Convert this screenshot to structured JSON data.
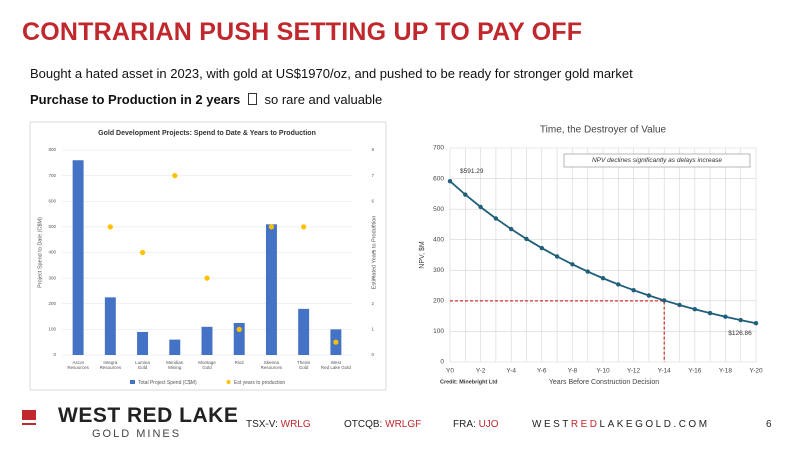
{
  "header": {
    "title": "CONTRARIAN PUSH SETTING UP TO PAY OFF",
    "line1": "Bought a hated asset in 2023, with gold at US$1970/oz, and pushed to be ready for stronger gold market",
    "line2_bold": "Purchase to Production in 2 years",
    "line2_rest": "so rare and valuable"
  },
  "chart_data": [
    {
      "type": "bar",
      "title": "Gold Development Projects: Spend to Date & Years to Production",
      "categories": [
        "Ascot Resources",
        "Integra Resources",
        "Lumina Gold",
        "Meridian Mining",
        "Montage Gold",
        "Rio2",
        "Skeena Resources",
        "Thesis Gold",
        "West Red Lake Gold"
      ],
      "series": [
        {
          "name": "Total Project Spend (C$M)",
          "color": "#4472c4",
          "type": "bar",
          "values": [
            760,
            225,
            90,
            60,
            110,
            125,
            510,
            180,
            100
          ]
        },
        {
          "name": "Est years to production",
          "color": "#ffc000",
          "type": "scatter",
          "axis": "y2",
          "values": [
            null,
            5,
            4,
            7,
            3,
            1,
            5,
            5,
            0.5
          ]
        }
      ],
      "ylabel": "Project Spend to Date (C$M)",
      "y2label": "Estimated Years to Production",
      "ylim": [
        0,
        800
      ],
      "yticks": [
        0,
        100,
        200,
        300,
        400,
        500,
        600,
        700,
        800
      ],
      "y2lim": [
        0,
        8
      ],
      "y2ticks": [
        0,
        1,
        2,
        3,
        4,
        5,
        6,
        7,
        8
      ],
      "grid": true,
      "legend": "bottom"
    },
    {
      "type": "line",
      "title": "Time, the Destroyer of Value",
      "annotation": "NPV declines significantly as delays increase",
      "credit": "Credit: Minebright Ltd",
      "xlabel": "Years Before Construction Decision",
      "ylabel": "NPV, $M",
      "categories": [
        "Y0",
        null,
        "Y-2",
        null,
        "Y-4",
        null,
        "Y-6",
        null,
        "Y-8",
        null,
        "Y-10",
        null,
        "Y-12",
        null,
        "Y-14",
        null,
        "Y-16",
        null,
        "Y-18",
        null,
        "Y-20"
      ],
      "values": [
        591.29,
        547.5,
        507,
        469.4,
        434.7,
        402.5,
        372.7,
        345.1,
        319.6,
        295.9,
        274,
        253.7,
        234.9,
        217.5,
        201.4,
        186.5,
        172.7,
        159.9,
        148.1,
        137.1,
        126.86
      ],
      "value_labels": [
        "$591.29",
        null,
        null,
        null,
        null,
        null,
        null,
        null,
        null,
        null,
        null,
        null,
        null,
        null,
        null,
        null,
        null,
        null,
        null,
        null,
        "$126.86"
      ],
      "color": "#1f5f7a",
      "reference": {
        "x_index": 14,
        "y": 200,
        "color": "#c00000"
      },
      "ylim": [
        0,
        700
      ],
      "yticks": [
        0,
        100,
        200,
        300,
        400,
        500,
        600,
        700
      ],
      "grid": true
    }
  ],
  "footer": {
    "logo_top": "WEST RED LAKE",
    "logo_bottom": "GOLD MINES",
    "tsx_label": "TSX-V:",
    "tsx": "WRLG",
    "otc_label": "OTCQB:",
    "otc": "WRLGF",
    "fra_label": "FRA:",
    "fra": "UJO",
    "web_1": "WEST",
    "web_2": "RED",
    "web_3": "LAKEGOLD.COM",
    "page": "6"
  }
}
